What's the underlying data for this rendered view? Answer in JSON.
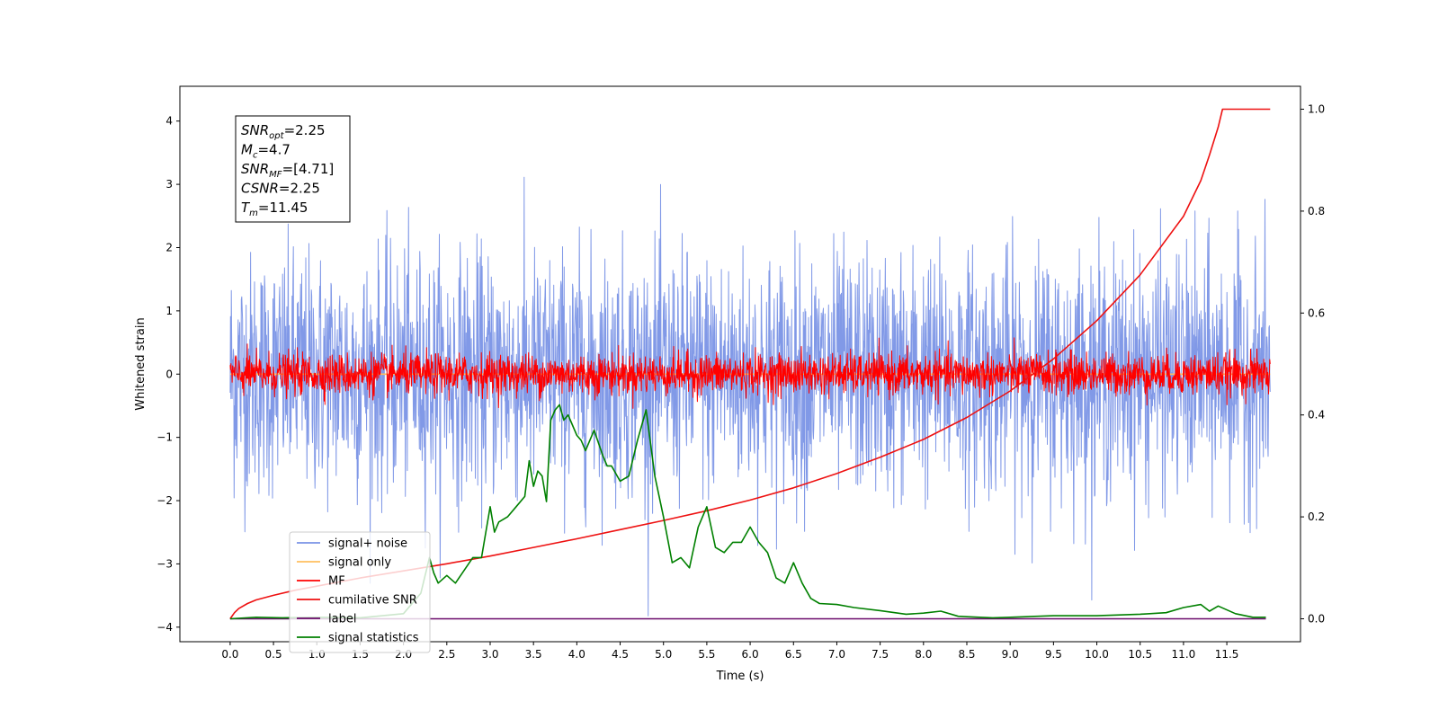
{
  "chart_data": {
    "type": "line",
    "xlabel": "Time (s)",
    "ylabel_left": "Whitened strain",
    "ylabel_right": "",
    "xlim": [
      -0.58,
      12.35
    ],
    "ylim_left": [
      -4.23,
      4.55
    ],
    "ylim_right": [
      -0.045,
      1.045
    ],
    "x_ticks": [
      "0.0",
      "0.5",
      "1.0",
      "1.5",
      "2.0",
      "2.5",
      "3.0",
      "3.5",
      "4.0",
      "4.5",
      "5.0",
      "5.5",
      "6.0",
      "6.5",
      "7.0",
      "7.5",
      "8.0",
      "8.5",
      "9.0",
      "9.5",
      "10.0",
      "10.5",
      "11.0",
      "11.5"
    ],
    "y_ticks_left": [
      "4",
      "3",
      "2",
      "1",
      "0",
      "−1",
      "−2",
      "−3",
      "−4"
    ],
    "y_ticks_right": [
      "1.0",
      "0.8",
      "0.6",
      "0.4",
      "0.2",
      "0.0"
    ],
    "grid": false,
    "legend_position": "lower-left",
    "annotation": {
      "lines": [
        {
          "sym": "SNR",
          "sub": "opt",
          "val": "=2.25"
        },
        {
          "sym": "M",
          "sub": "c",
          "val": "=4.7"
        },
        {
          "sym": "SNR",
          "sub": "MF",
          "val": "=[4.71]"
        },
        {
          "sym": "CSNR",
          "sub": "",
          "val": "=2.25"
        },
        {
          "sym": "T",
          "sub": "m",
          "val": "=11.45"
        }
      ]
    },
    "series": [
      {
        "name": "signal+ noise",
        "axis": "left",
        "color": "#7a93e6",
        "kind": "noise",
        "center": 0.0,
        "std": 0.95,
        "x_range": [
          0,
          12
        ]
      },
      {
        "name": "signal only",
        "axis": "left",
        "color": "#ffbf5f",
        "kind": "constant",
        "value": 0.0,
        "x_range": [
          0,
          12
        ]
      },
      {
        "name": "MF",
        "axis": "left",
        "color": "#ff0000",
        "kind": "noise",
        "center": 0.0,
        "std": 0.16,
        "x_range": [
          0,
          12
        ]
      },
      {
        "name": "cumilative SNR",
        "axis": "right",
        "color": "#ee1111",
        "kind": "line",
        "x": [
          0,
          0.05,
          0.1,
          0.2,
          0.3,
          0.5,
          0.75,
          1.0,
          1.5,
          2.0,
          2.5,
          3.0,
          3.5,
          4.0,
          4.5,
          5.0,
          5.5,
          6.0,
          6.5,
          7.0,
          7.5,
          8.0,
          8.5,
          9.0,
          9.5,
          10.0,
          10.5,
          11.0,
          11.2,
          11.3,
          11.4,
          11.45,
          12.0
        ],
        "y": [
          0.0,
          0.012,
          0.02,
          0.03,
          0.037,
          0.046,
          0.056,
          0.064,
          0.08,
          0.094,
          0.108,
          0.123,
          0.14,
          0.157,
          0.175,
          0.193,
          0.212,
          0.233,
          0.257,
          0.285,
          0.317,
          0.352,
          0.395,
          0.447,
          0.51,
          0.585,
          0.675,
          0.79,
          0.86,
          0.91,
          0.965,
          1.0,
          1.0
        ]
      },
      {
        "name": "label",
        "axis": "right",
        "color": "#6a0a6a",
        "kind": "line",
        "x": [
          0,
          11.95
        ],
        "y": [
          0.0,
          0.0
        ]
      },
      {
        "name": "signal statistics",
        "axis": "right",
        "color": "#008000",
        "kind": "line",
        "x": [
          0,
          0.3,
          0.6,
          1.0,
          1.5,
          2.0,
          2.2,
          2.3,
          2.35,
          2.4,
          2.5,
          2.6,
          2.7,
          2.8,
          2.9,
          3.0,
          3.05,
          3.1,
          3.2,
          3.3,
          3.4,
          3.45,
          3.5,
          3.55,
          3.6,
          3.65,
          3.7,
          3.75,
          3.8,
          3.85,
          3.9,
          3.95,
          4.0,
          4.05,
          4.1,
          4.2,
          4.3,
          4.35,
          4.4,
          4.5,
          4.6,
          4.7,
          4.8,
          4.9,
          5.0,
          5.1,
          5.2,
          5.3,
          5.4,
          5.5,
          5.6,
          5.7,
          5.8,
          5.9,
          6.0,
          6.1,
          6.2,
          6.3,
          6.4,
          6.5,
          6.6,
          6.7,
          6.8,
          7.0,
          7.2,
          7.5,
          7.8,
          8.0,
          8.2,
          8.4,
          8.5,
          8.8,
          9.0,
          9.5,
          10.0,
          10.5,
          10.8,
          11.0,
          11.2,
          11.3,
          11.4,
          11.6,
          11.8,
          11.95
        ],
        "y": [
          0.0,
          0.003,
          0.002,
          0.003,
          0.002,
          0.01,
          0.05,
          0.12,
          0.09,
          0.07,
          0.085,
          0.07,
          0.095,
          0.12,
          0.12,
          0.22,
          0.17,
          0.19,
          0.2,
          0.22,
          0.24,
          0.31,
          0.26,
          0.29,
          0.28,
          0.23,
          0.39,
          0.41,
          0.42,
          0.39,
          0.4,
          0.38,
          0.36,
          0.35,
          0.33,
          0.37,
          0.32,
          0.3,
          0.3,
          0.27,
          0.28,
          0.35,
          0.41,
          0.28,
          0.2,
          0.11,
          0.12,
          0.1,
          0.18,
          0.22,
          0.14,
          0.13,
          0.15,
          0.15,
          0.18,
          0.15,
          0.13,
          0.08,
          0.07,
          0.11,
          0.07,
          0.04,
          0.03,
          0.028,
          0.022,
          0.016,
          0.009,
          0.011,
          0.015,
          0.005,
          0.004,
          0.002,
          0.003,
          0.006,
          0.006,
          0.009,
          0.012,
          0.022,
          0.028,
          0.015,
          0.025,
          0.01,
          0.003,
          0.003
        ]
      }
    ]
  }
}
